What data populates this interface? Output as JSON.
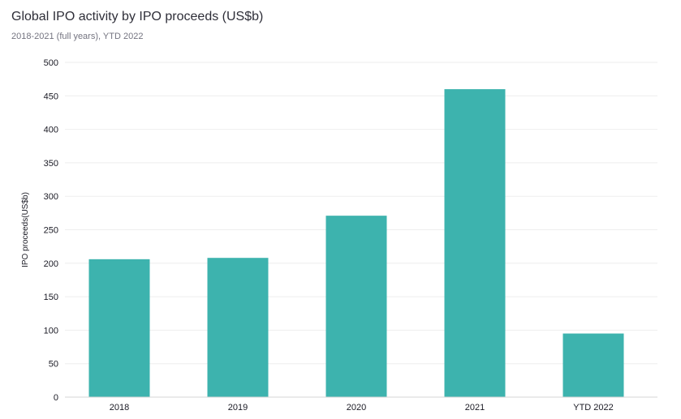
{
  "chart_data": {
    "type": "bar",
    "title": "Global IPO activity by IPO proceeds (US$b)",
    "subtitle": "2018-2021 (full years), YTD 2022",
    "categories": [
      "2018",
      "2019",
      "2020",
      "2021",
      "YTD 2022"
    ],
    "series": [
      {
        "name": "IPO proceeds (US$b)",
        "values": [
          206,
          208,
          271,
          460,
          95
        ]
      }
    ],
    "xlabel": "",
    "ylabel": "IPO proceeds(US$b)",
    "ylim": [
      0,
      500
    ],
    "yticks": [
      0,
      50,
      100,
      150,
      200,
      250,
      300,
      350,
      400,
      450,
      500
    ],
    "grid": true,
    "bar_color": "#3db3ae",
    "grid_color": "#eeeeee"
  }
}
